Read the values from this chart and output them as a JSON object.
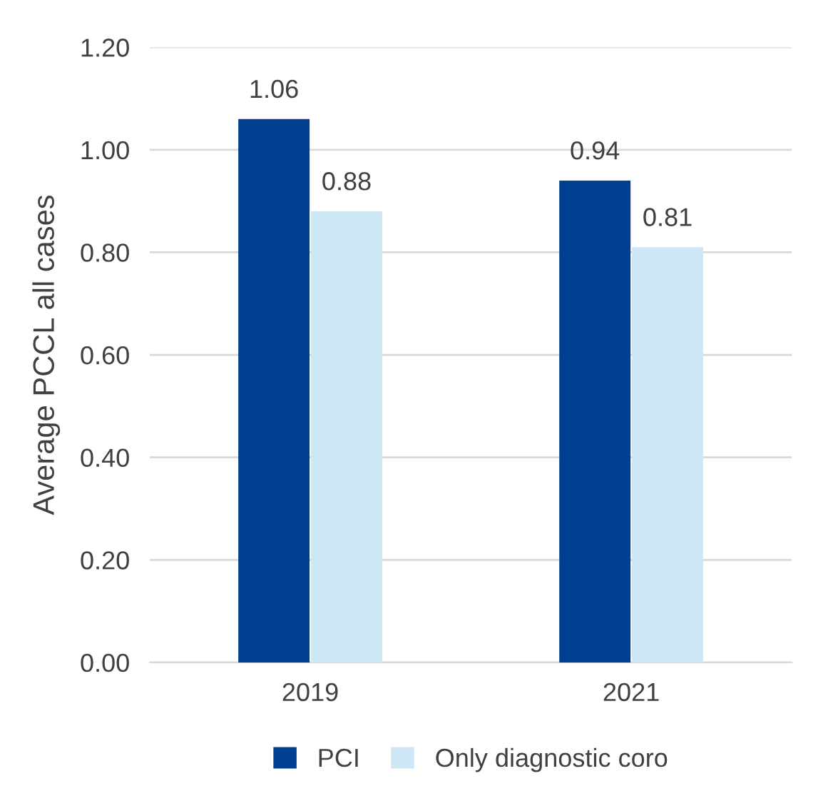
{
  "chart_data": {
    "type": "bar",
    "ylabel": "Average PCCL all cases",
    "categories": [
      "2019",
      "2021"
    ],
    "series": [
      {
        "name": "PCI",
        "color": "#003f8f",
        "values": [
          1.06,
          0.94
        ]
      },
      {
        "name": "Only diagnostic coro",
        "color": "#cde8f4",
        "values": [
          0.88,
          0.81
        ]
      }
    ],
    "ylim": [
      0,
      1.2
    ],
    "yticks": [
      {
        "value": 0,
        "label": "0.00"
      },
      {
        "value": 0.2,
        "label": "0.20"
      },
      {
        "value": 0.4,
        "label": "0.40"
      },
      {
        "value": 0.6,
        "label": "0.60"
      },
      {
        "value": 0.8,
        "label": "0.80"
      },
      {
        "value": 1.0,
        "label": "1.00"
      },
      {
        "value": 1.2,
        "label": "1.20"
      }
    ],
    "grid": "y",
    "legend": "bottom",
    "data_labels": true
  }
}
